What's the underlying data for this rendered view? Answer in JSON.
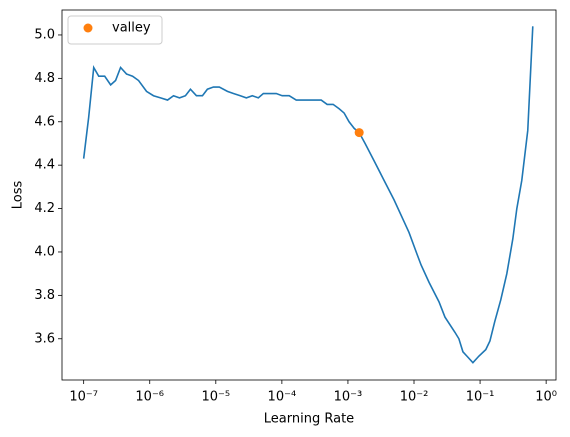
{
  "chart_data": {
    "type": "line",
    "xlabel": "Learning Rate",
    "ylabel": "Loss",
    "xscale": "log",
    "legend": "upper left",
    "xlim": [
      4.7e-08,
      1.41
    ],
    "ylim": [
      3.41,
      5.115
    ],
    "xticks": [
      {
        "value": 1e-07,
        "label": "10⁻⁷"
      },
      {
        "value": 1e-06,
        "label": "10⁻⁶"
      },
      {
        "value": 1e-05,
        "label": "10⁻⁵"
      },
      {
        "value": 0.0001,
        "label": "10⁻⁴"
      },
      {
        "value": 0.001,
        "label": "10⁻³"
      },
      {
        "value": 0.01,
        "label": "10⁻²"
      },
      {
        "value": 0.1,
        "label": "10⁻¹"
      },
      {
        "value": 1,
        "label": "10⁰"
      }
    ],
    "yticks": [
      3.6,
      3.8,
      {
        "value": 4.0,
        "label": "4.0"
      },
      4.2,
      4.4,
      4.6,
      4.8,
      {
        "value": 5.0,
        "label": "5.0"
      }
    ],
    "series": [
      {
        "color": "#1f77b4",
        "x": [
          1e-07,
          1.19e-07,
          1.42e-07,
          1.69e-07,
          2.08e-07,
          2.56e-07,
          3.04e-07,
          3.62e-07,
          4.46e-07,
          5.5e-07,
          6.78e-07,
          8.95e-07,
          1.14e-06,
          1.46e-06,
          1.86e-06,
          2.29e-06,
          2.82e-06,
          3.47e-06,
          4.13e-06,
          5.09e-06,
          6.28e-06,
          7.46e-06,
          9.2e-06,
          1.13e-05,
          1.5e-05,
          1.85e-05,
          2.35e-05,
          2.9e-05,
          3.57e-05,
          4.4e-05,
          5.24e-05,
          6.45e-05,
          8.23e-05,
          0.000101,
          0.000129,
          0.000165,
          0.000218,
          0.000288,
          0.000394,
          0.000485,
          0.000597,
          0.000736,
          0.000877,
          0.00104,
          0.00124,
          0.00148,
          0.00182,
          0.00249,
          0.00352,
          0.00499,
          0.00706,
          0.0084,
          0.0111,
          0.0128,
          0.0169,
          0.0239,
          0.0294,
          0.0416,
          0.0478,
          0.055,
          0.0632,
          0.0779,
          0.0959,
          0.122,
          0.141,
          0.167,
          0.206,
          0.254,
          0.313,
          0.36,
          0.428,
          0.527,
          0.628
        ],
        "values": [
          4.43,
          4.62,
          4.85,
          4.81,
          4.81,
          4.77,
          4.79,
          4.85,
          4.82,
          4.81,
          4.79,
          4.74,
          4.72,
          4.71,
          4.7,
          4.72,
          4.71,
          4.72,
          4.75,
          4.72,
          4.72,
          4.75,
          4.76,
          4.76,
          4.74,
          4.73,
          4.72,
          4.71,
          4.72,
          4.71,
          4.73,
          4.73,
          4.73,
          4.72,
          4.72,
          4.7,
          4.7,
          4.7,
          4.7,
          4.68,
          4.68,
          4.66,
          4.64,
          4.6,
          4.57,
          4.55,
          4.5,
          4.42,
          4.33,
          4.24,
          4.14,
          4.09,
          3.99,
          3.94,
          3.86,
          3.77,
          3.7,
          3.63,
          3.6,
          3.54,
          3.52,
          3.49,
          3.52,
          3.55,
          3.59,
          3.68,
          3.78,
          3.9,
          4.06,
          4.2,
          4.33,
          4.56,
          5.04
        ]
      },
      {
        "name": "valley",
        "color": "#ff7f0e",
        "marker": "o",
        "x": [
          0.00148
        ],
        "values": [
          4.55
        ]
      }
    ]
  }
}
